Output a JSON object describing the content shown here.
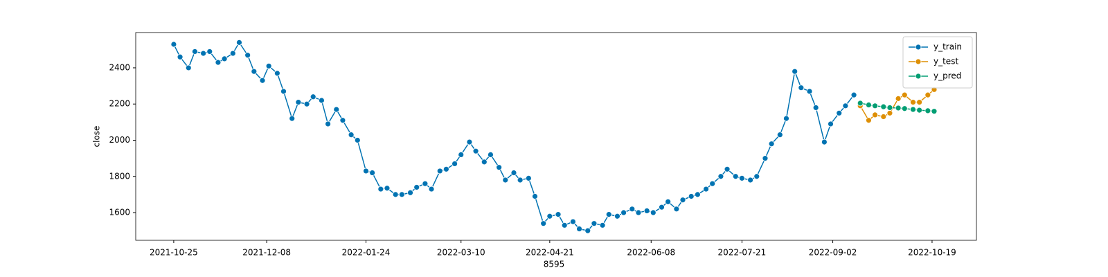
{
  "chart_data": {
    "type": "line",
    "xlabel": "8595",
    "ylabel": "close",
    "xlim": [
      "2021-10-07",
      "2022-11-09"
    ],
    "ylim": [
      1447,
      2595
    ],
    "xticks": [
      "2021-10-25",
      "2021-12-08",
      "2022-01-24",
      "2022-03-10",
      "2022-04-21",
      "2022-06-08",
      "2022-07-21",
      "2022-09-02",
      "2022-10-19"
    ],
    "yticks": [
      1600,
      1800,
      2000,
      2200,
      2400
    ],
    "legend": "upper right",
    "series": [
      {
        "name": "y_train",
        "color": "#0173b2",
        "x": [
          "2021-10-25",
          "2021-10-28",
          "2021-11-01",
          "2021-11-04",
          "2021-11-08",
          "2021-11-11",
          "2021-11-15",
          "2021-11-18",
          "2021-11-22",
          "2021-11-25",
          "2021-11-29",
          "2021-12-02",
          "2021-12-06",
          "2021-12-09",
          "2021-12-13",
          "2021-12-16",
          "2021-12-20",
          "2021-12-23",
          "2021-12-27",
          "2021-12-30",
          "2022-01-03",
          "2022-01-06",
          "2022-01-10",
          "2022-01-13",
          "2022-01-17",
          "2022-01-20",
          "2022-01-24",
          "2022-01-27",
          "2022-01-31",
          "2022-02-03",
          "2022-02-07",
          "2022-02-10",
          "2022-02-14",
          "2022-02-17",
          "2022-02-21",
          "2022-02-24",
          "2022-02-28",
          "2022-03-03",
          "2022-03-07",
          "2022-03-10",
          "2022-03-14",
          "2022-03-17",
          "2022-03-21",
          "2022-03-24",
          "2022-03-28",
          "2022-03-31",
          "2022-04-04",
          "2022-04-07",
          "2022-04-11",
          "2022-04-14",
          "2022-04-18",
          "2022-04-21",
          "2022-04-25",
          "2022-04-28",
          "2022-05-02",
          "2022-05-05",
          "2022-05-09",
          "2022-05-12",
          "2022-05-16",
          "2022-05-19",
          "2022-05-23",
          "2022-05-26",
          "2022-05-30",
          "2022-06-02",
          "2022-06-06",
          "2022-06-09",
          "2022-06-13",
          "2022-06-16",
          "2022-06-20",
          "2022-06-23",
          "2022-06-27",
          "2022-06-30",
          "2022-07-04",
          "2022-07-07",
          "2022-07-11",
          "2022-07-14",
          "2022-07-18",
          "2022-07-21",
          "2022-07-25",
          "2022-07-28",
          "2022-08-01",
          "2022-08-04",
          "2022-08-08",
          "2022-08-11",
          "2022-08-15",
          "2022-08-18",
          "2022-08-22",
          "2022-08-25",
          "2022-08-29",
          "2022-09-01",
          "2022-09-05",
          "2022-09-08",
          "2022-09-12"
        ],
        "values": [
          2530,
          2460,
          2400,
          2490,
          2480,
          2490,
          2430,
          2450,
          2480,
          2540,
          2470,
          2380,
          2330,
          2410,
          2370,
          2270,
          2120,
          2210,
          2200,
          2240,
          2220,
          2090,
          2170,
          2110,
          2030,
          2000,
          1830,
          1820,
          1730,
          1735,
          1700,
          1700,
          1710,
          1740,
          1760,
          1730,
          1830,
          1840,
          1870,
          1920,
          1990,
          1940,
          1880,
          1920,
          1850,
          1780,
          1820,
          1780,
          1790,
          1690,
          1540,
          1580,
          1590,
          1530,
          1550,
          1510,
          1500,
          1540,
          1530,
          1590,
          1580,
          1600,
          1620,
          1600,
          1610,
          1600,
          1630,
          1660,
          1620,
          1670,
          1690,
          1700,
          1730,
          1760,
          1800,
          1840,
          1800,
          1790,
          1780,
          1800,
          1900,
          1980,
          2030,
          2120,
          2380,
          2290,
          2270,
          2180,
          1990,
          2090,
          2150,
          2190,
          2250
        ]
      },
      {
        "name": "y_test",
        "color": "#de8f05",
        "x": [
          "2022-09-15",
          "2022-09-19",
          "2022-09-22",
          "2022-09-26",
          "2022-09-29",
          "2022-10-03",
          "2022-10-06",
          "2022-10-10",
          "2022-10-13",
          "2022-10-17",
          "2022-10-20"
        ],
        "values": [
          2190,
          2110,
          2140,
          2130,
          2150,
          2230,
          2250,
          2210,
          2210,
          2250,
          2280
        ]
      },
      {
        "name": "y_pred",
        "color": "#029e73",
        "x": [
          "2022-09-15",
          "2022-09-19",
          "2022-09-22",
          "2022-09-26",
          "2022-09-29",
          "2022-10-03",
          "2022-10-06",
          "2022-10-10",
          "2022-10-13",
          "2022-10-17",
          "2022-10-20"
        ],
        "values": [
          2205,
          2195,
          2190,
          2185,
          2180,
          2178,
          2175,
          2170,
          2166,
          2163,
          2160
        ]
      }
    ]
  }
}
